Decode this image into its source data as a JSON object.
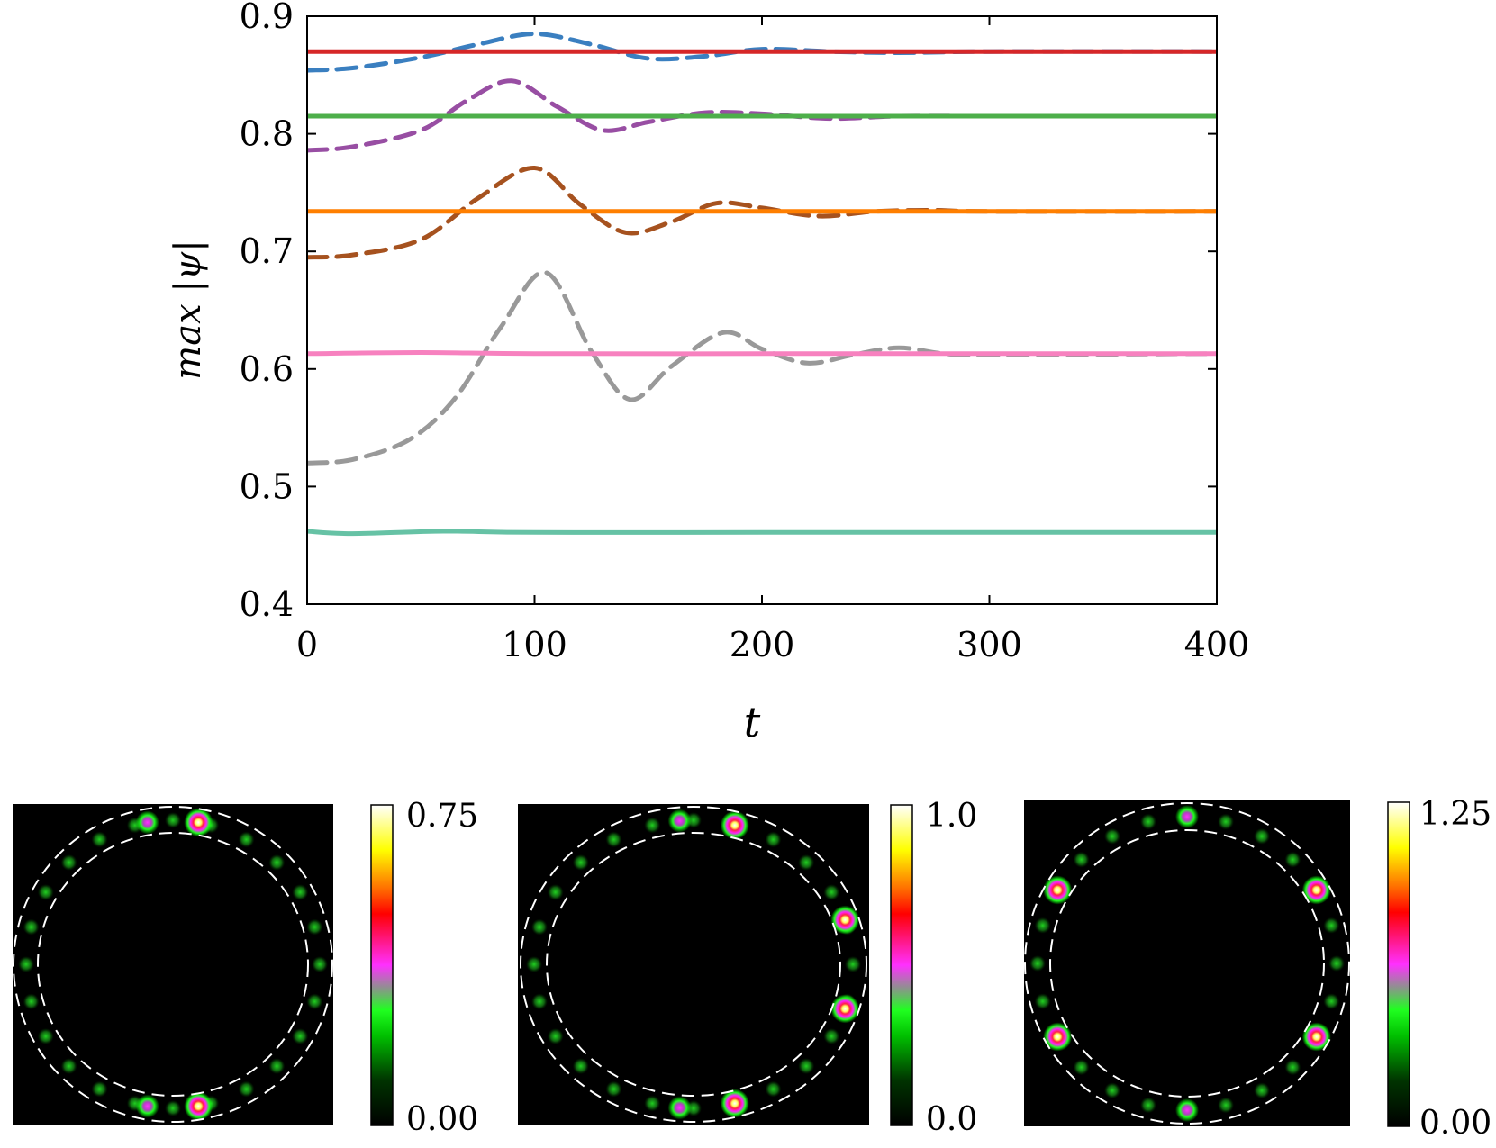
{
  "chart_data": [
    {
      "type": "line",
      "xlabel": "t",
      "ylabel": "max |ψ|",
      "xlim": [
        0,
        400
      ],
      "ylim": [
        0.4,
        0.9
      ],
      "xticks": [
        "0",
        "100",
        "200",
        "300",
        "400"
      ],
      "yticks": [
        "0.4",
        "0.5",
        "0.6",
        "0.7",
        "0.8",
        "0.9"
      ],
      "grid": false,
      "legend": "none",
      "series": [
        {
          "color": "#d62728",
          "style": "solid",
          "x": [
            0,
            20,
            60,
            100,
            200,
            300,
            400
          ],
          "y": [
            0.87,
            0.87,
            0.87,
            0.87,
            0.87,
            0.87,
            0.87
          ]
        },
        {
          "color": "#3a7fc0",
          "style": "dashed",
          "x": [
            0,
            20,
            50,
            75,
            100,
            125,
            150,
            175,
            200,
            230,
            260,
            300,
            400
          ],
          "y": [
            0.854,
            0.856,
            0.865,
            0.876,
            0.885,
            0.876,
            0.864,
            0.866,
            0.872,
            0.87,
            0.869,
            0.87,
            0.87
          ]
        },
        {
          "color": "#4daf4a",
          "style": "solid",
          "x": [
            0,
            50,
            100,
            200,
            300,
            400
          ],
          "y": [
            0.815,
            0.815,
            0.815,
            0.815,
            0.815,
            0.815
          ]
        },
        {
          "color": "#984ea3",
          "style": "dashed",
          "x": [
            0,
            20,
            50,
            70,
            90,
            110,
            130,
            150,
            175,
            200,
            230,
            260,
            300,
            400
          ],
          "y": [
            0.786,
            0.789,
            0.803,
            0.828,
            0.845,
            0.823,
            0.803,
            0.81,
            0.818,
            0.817,
            0.813,
            0.815,
            0.815,
            0.815
          ]
        },
        {
          "color": "#ff7f00",
          "style": "solid",
          "x": [
            0,
            50,
            100,
            200,
            300,
            400
          ],
          "y": [
            0.734,
            0.734,
            0.734,
            0.734,
            0.734,
            0.734
          ]
        },
        {
          "color": "#a6521f",
          "style": "dashed",
          "x": [
            0,
            20,
            50,
            75,
            100,
            120,
            140,
            160,
            180,
            200,
            225,
            250,
            275,
            300,
            400
          ],
          "y": [
            0.695,
            0.697,
            0.71,
            0.745,
            0.771,
            0.74,
            0.716,
            0.725,
            0.741,
            0.737,
            0.73,
            0.734,
            0.735,
            0.734,
            0.734
          ]
        },
        {
          "color": "#f781bf",
          "style": "solid",
          "x": [
            0,
            50,
            100,
            200,
            300,
            400
          ],
          "y": [
            0.613,
            0.614,
            0.613,
            0.613,
            0.613,
            0.613
          ]
        },
        {
          "color": "#999999",
          "style": "dashed",
          "x": [
            0,
            20,
            45,
            65,
            85,
            105,
            125,
            142,
            160,
            183,
            200,
            220,
            240,
            260,
            280,
            300,
            400
          ],
          "y": [
            0.52,
            0.523,
            0.54,
            0.575,
            0.635,
            0.682,
            0.615,
            0.574,
            0.602,
            0.631,
            0.617,
            0.605,
            0.612,
            0.618,
            0.613,
            0.612,
            0.613
          ]
        },
        {
          "color": "#66c2a5",
          "style": "solid",
          "x": [
            0,
            20,
            60,
            100,
            200,
            300,
            400
          ],
          "y": [
            0.462,
            0.46,
            0.462,
            0.461,
            0.461,
            0.461,
            0.461
          ]
        }
      ]
    },
    {
      "type": "heatmap",
      "colorbar": {
        "min_label": "0.00",
        "max_label": "0.75",
        "min": 0,
        "max": 0.75
      },
      "bright_spots": [
        {
          "angle_deg": 80,
          "value": 0.75
        },
        {
          "angle_deg": 100,
          "value": 0.6
        },
        {
          "angle_deg": -80,
          "value": 0.75
        },
        {
          "angle_deg": -100,
          "value": 0.6
        }
      ]
    },
    {
      "type": "heatmap",
      "colorbar": {
        "min_label": "0.0",
        "max_label": "1.0",
        "min": 0,
        "max": 1.0
      },
      "bright_spots": [
        {
          "angle_deg": 75,
          "value": 1.0
        },
        {
          "angle_deg": 95,
          "value": 0.8
        },
        {
          "angle_deg": 18,
          "value": 1.0
        },
        {
          "angle_deg": -18,
          "value": 1.0
        },
        {
          "angle_deg": -75,
          "value": 1.0
        },
        {
          "angle_deg": -95,
          "value": 0.8
        }
      ]
    },
    {
      "type": "heatmap",
      "colorbar": {
        "min_label": "0.00",
        "max_label": "1.25",
        "min": 0,
        "max": 1.25
      },
      "bright_spots": [
        {
          "angle_deg": 90,
          "value": 1.0
        },
        {
          "angle_deg": 30,
          "value": 1.25
        },
        {
          "angle_deg": -30,
          "value": 1.25
        },
        {
          "angle_deg": -90,
          "value": 1.0
        },
        {
          "angle_deg": 150,
          "value": 1.25
        },
        {
          "angle_deg": 210,
          "value": 1.25
        }
      ]
    }
  ]
}
